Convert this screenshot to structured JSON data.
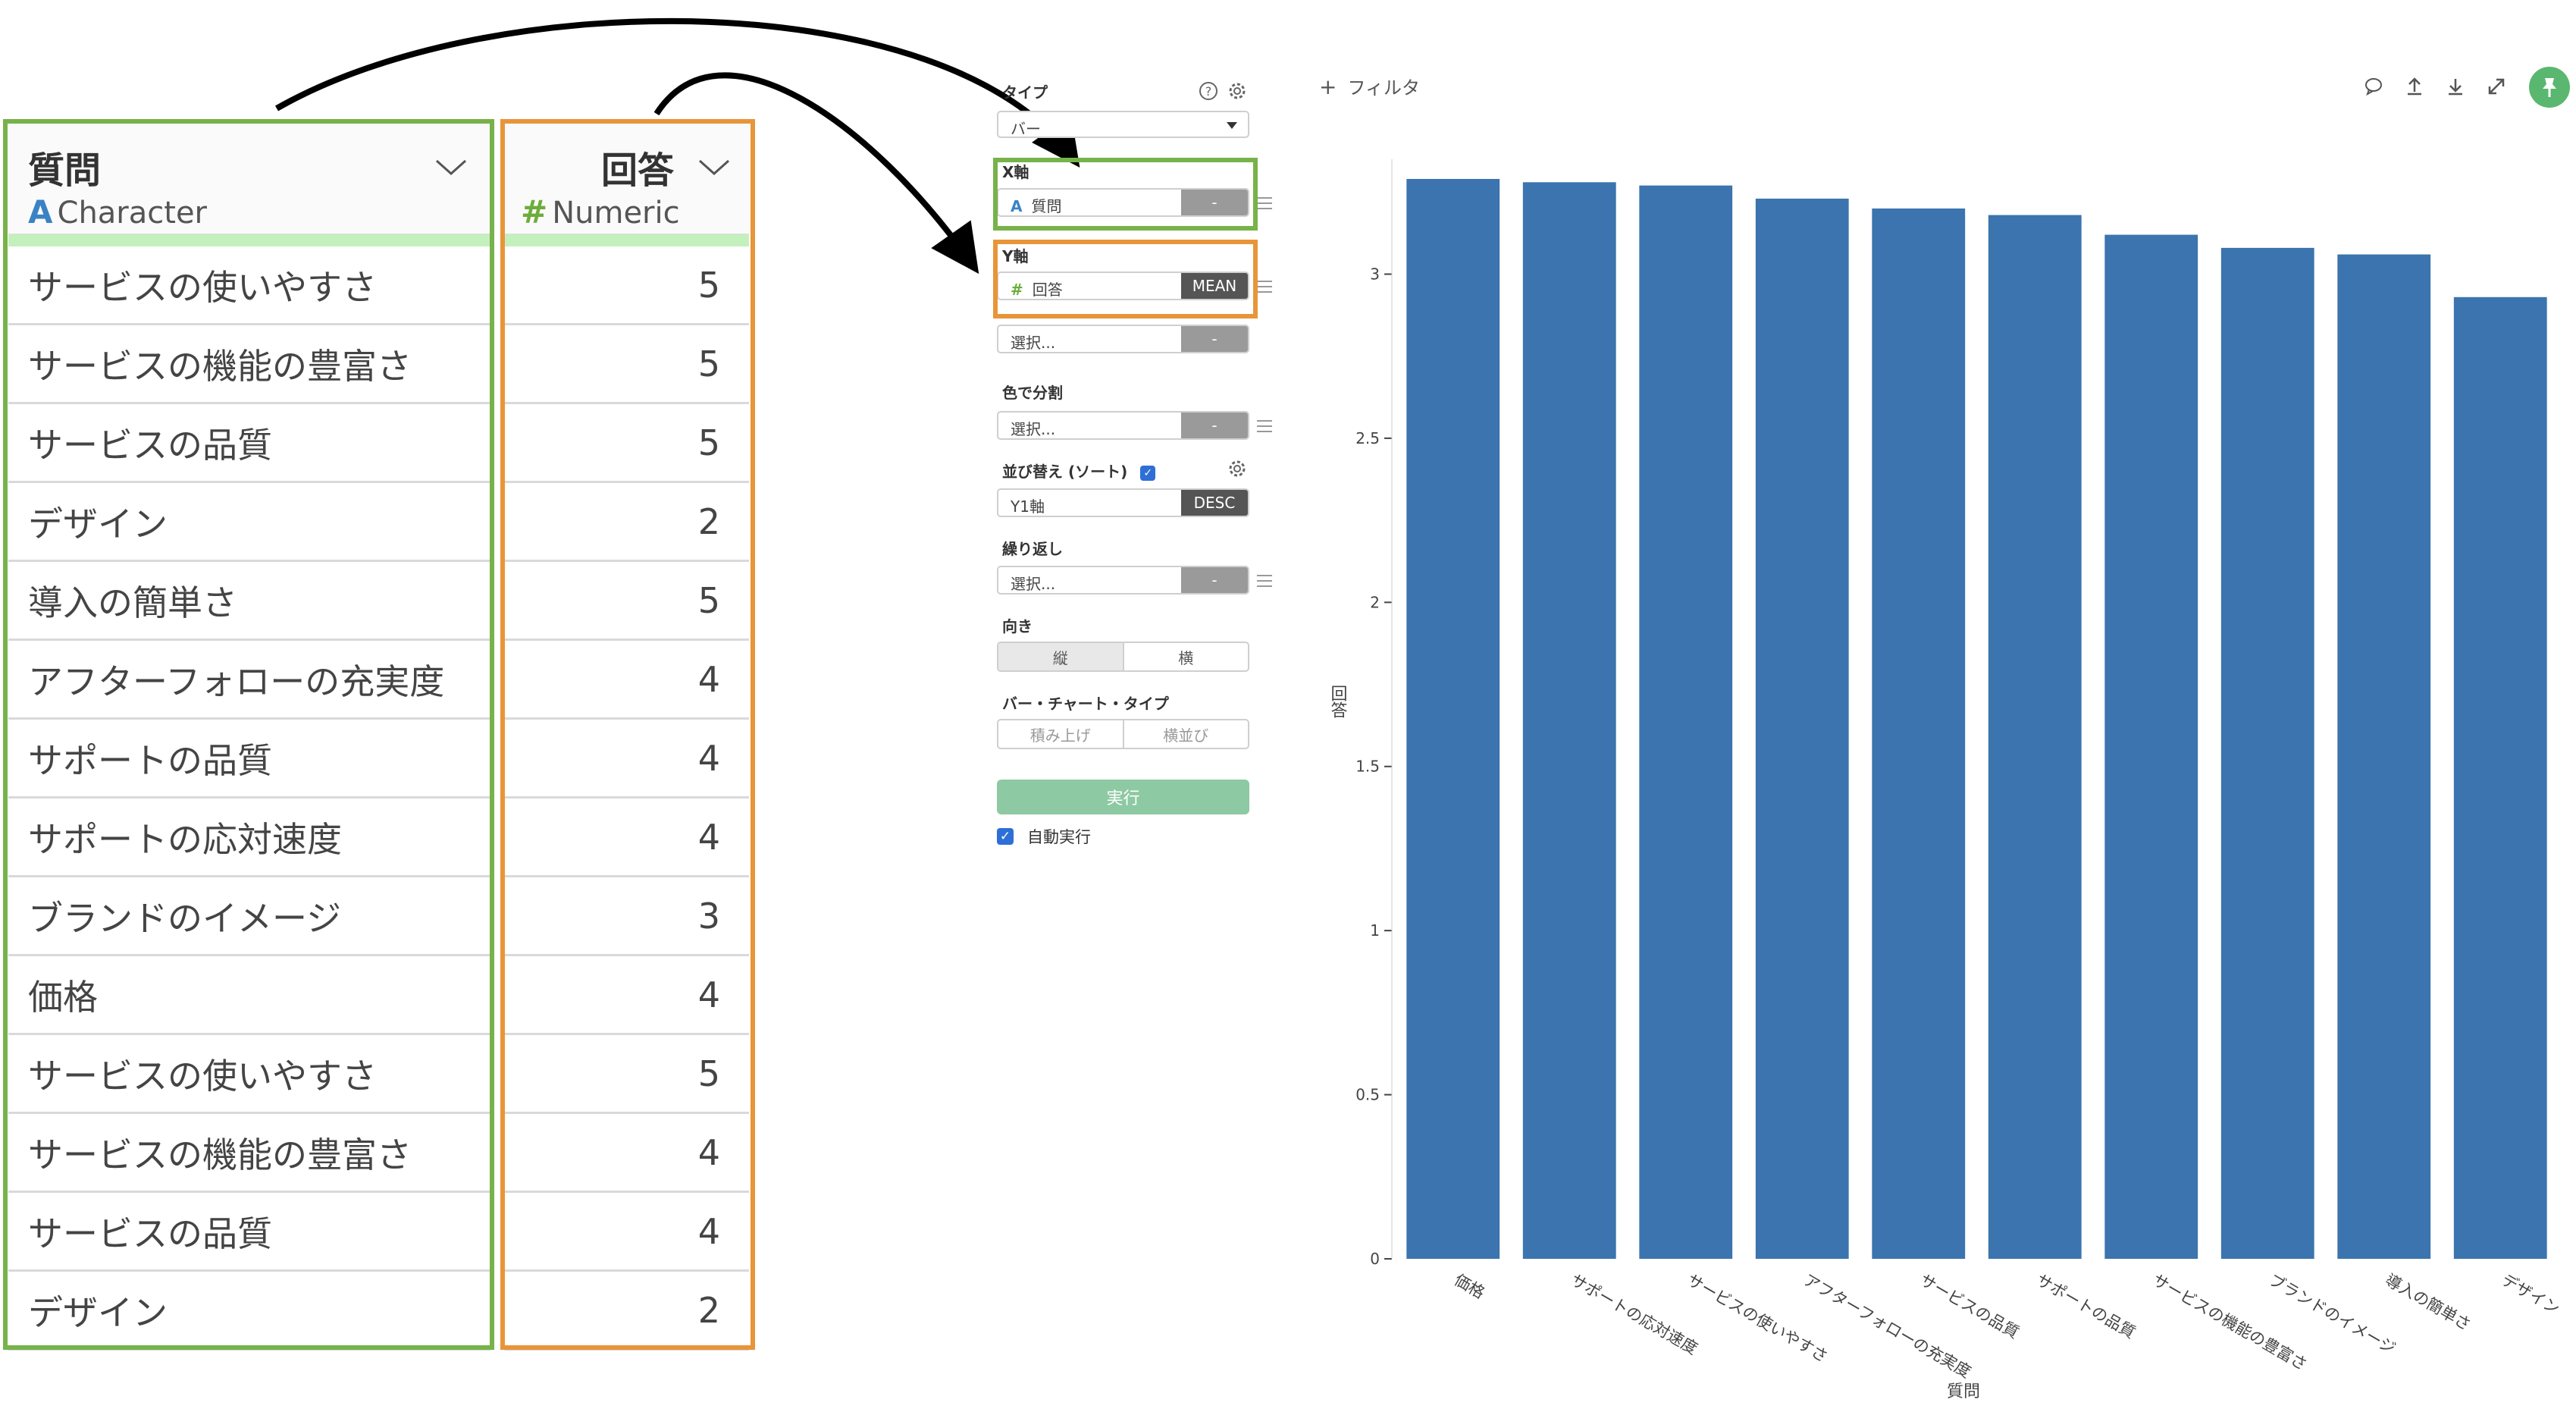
{
  "table": {
    "question_col": {
      "name": "質問",
      "type_glyph": "A",
      "type_label": "Character",
      "chevron": "chevron-down-icon"
    },
    "answer_col": {
      "name": "回答",
      "type_glyph": "#",
      "type_label": "Numeric",
      "chevron": "chevron-down-icon"
    },
    "rows": [
      {
        "q": "サービスの使いやすさ",
        "a": "5"
      },
      {
        "q": "サービスの機能の豊富さ",
        "a": "5"
      },
      {
        "q": "サービスの品質",
        "a": "5"
      },
      {
        "q": "デザイン",
        "a": "2"
      },
      {
        "q": "導入の簡単さ",
        "a": "5"
      },
      {
        "q": "アフターフォローの充実度",
        "a": "4"
      },
      {
        "q": "サポートの品質",
        "a": "4"
      },
      {
        "q": "サポートの応対速度",
        "a": "4"
      },
      {
        "q": "ブランドのイメージ",
        "a": "3"
      },
      {
        "q": "価格",
        "a": "4"
      },
      {
        "q": "サービスの使いやすさ",
        "a": "5"
      },
      {
        "q": "サービスの機能の豊富さ",
        "a": "4"
      },
      {
        "q": "サービスの品質",
        "a": "4"
      },
      {
        "q": "デザイン",
        "a": "2"
      }
    ],
    "colors": {
      "question_highlight": "#77b24a",
      "answer_highlight": "#e8953a",
      "type_a": "#3b82c4",
      "type_numeric": "#6cad3a"
    }
  },
  "panel": {
    "type_label": "タイプ",
    "type_value": "バー",
    "x_axis_label": "X軸",
    "x_field": {
      "glyph": "A",
      "value": "質問",
      "button": "-"
    },
    "y_axis_label": "Y軸",
    "y_field": {
      "glyph": "#",
      "value": "回答",
      "button": "MEAN"
    },
    "y_extra": {
      "placeholder": "選択...",
      "button": "-"
    },
    "color_label": "色で分割",
    "color_field": {
      "placeholder": "選択...",
      "button": "-"
    },
    "sort_label": "並び替え (ソート)",
    "sort_checked": true,
    "sort_field": {
      "value": "Y1軸",
      "button": "DESC"
    },
    "repeat_label": "繰り返し",
    "repeat_field": {
      "placeholder": "選択...",
      "button": "-"
    },
    "orientation_label": "向き",
    "orientation_options": [
      "縦",
      "横"
    ],
    "orientation_selected": "縦",
    "bar_type_label": "バー・チャート・タイプ",
    "bar_type_options": [
      "積み上げ",
      "横並び"
    ],
    "run_button": "実行",
    "auto_run_label": "自動実行",
    "auto_run_checked": true,
    "icons": [
      "help-icon",
      "gear-icon"
    ]
  },
  "toolbar": {
    "filter_label": "フィルタ",
    "icons": [
      "comment-icon",
      "upload-icon",
      "download-icon",
      "expand-icon",
      "pin-icon"
    ],
    "pin_color": "#5ab76f"
  },
  "chart_data": {
    "type": "bar",
    "categories": [
      "価格",
      "サポートの応対速度",
      "サービスの使いやすさ",
      "アフターフォローの充実度",
      "サービスの品質",
      "サポートの品質",
      "サービスの機能の豊富さ",
      "ブランドのイメージ",
      "導入の簡単さ",
      "デザイン"
    ],
    "values": [
      3.29,
      3.28,
      3.27,
      3.23,
      3.2,
      3.18,
      3.12,
      3.08,
      3.06,
      2.93
    ],
    "xlabel": "質問",
    "ylabel": "回答",
    "ylim": [
      0,
      3.35
    ],
    "yticks": [
      0,
      0.5,
      1,
      1.5,
      2,
      2.5,
      3
    ],
    "bar_color": "#3b74ae",
    "grid": false
  }
}
